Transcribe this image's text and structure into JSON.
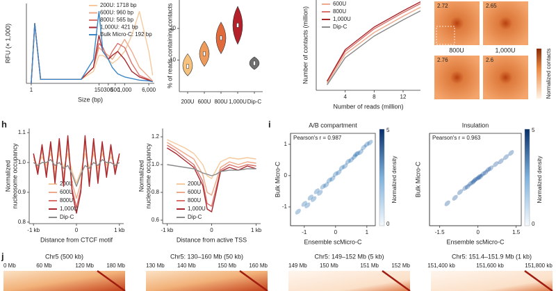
{
  "panel_labels": [
    "h",
    "i",
    "j"
  ],
  "chart_data": [
    {
      "type": "line",
      "xlabel": "Size (bp)",
      "ylabel": "RFU (× 1,000)",
      "xscale": "log",
      "xlim": [
        0.7,
        9000
      ],
      "ylim": [
        0,
        10
      ],
      "xticks": [
        1,
        150,
        300,
        500,
        {
          "value": 1000,
          "label": "1,000"
        },
        {
          "value": 6000,
          "label": "6,000"
        }
      ],
      "x": [
        1,
        1.3,
        2,
        40,
        100,
        150,
        200,
        300,
        400,
        600,
        1000,
        1700,
        3000,
        6000,
        8000
      ],
      "series": [
        {
          "name": "200U: 1718 bp",
          "color": "#f5c99b",
          "values": [
            0,
            7.5,
            0.5,
            0.5,
            1.5,
            3.5,
            3.5,
            3,
            2.5,
            3,
            4,
            6,
            9,
            4,
            1
          ]
        },
        {
          "name": "600U: 960 bp",
          "color": "#eea98a",
          "values": [
            0,
            7.5,
            0.5,
            0.5,
            2,
            4.5,
            4,
            3.5,
            3,
            4,
            5.5,
            4,
            2,
            0.8,
            0.3
          ]
        },
        {
          "name": "800U: 565 bp",
          "color": "#d9726b",
          "values": [
            0,
            7.5,
            0.5,
            0.5,
            2,
            5,
            4.5,
            3,
            4,
            5,
            4.5,
            2.5,
            1,
            0.5,
            0.2
          ]
        },
        {
          "name": "1,000U: 421 bp",
          "color": "#a8262c",
          "values": [
            0,
            7.5,
            0.5,
            0.5,
            2,
            6,
            4,
            3,
            3.5,
            4,
            3,
            1.5,
            0.8,
            0.4,
            0.2
          ]
        },
        {
          "name": "Bulk Micro-C: 192 bp",
          "color": "#3a87c8",
          "values": [
            0,
            7.5,
            0.5,
            0.5,
            3,
            9,
            4,
            3,
            2,
            1.2,
            0.8,
            0.6,
            0.4,
            0.3,
            0.2
          ]
        }
      ]
    },
    {
      "type": "violin",
      "ylabel": "% of reads containing contacts",
      "categories": [
        "200U",
        "600U",
        "800U",
        "1,000U",
        "Dip-C"
      ],
      "values": [
        8,
        12,
        17,
        21,
        9
      ],
      "low": [
        5,
        8,
        12,
        15,
        7
      ],
      "high": [
        12,
        16,
        22,
        27,
        11
      ],
      "colors": [
        "#f6c27d",
        "#ee9a5a",
        "#e06a3b",
        "#b3202a",
        "#707070"
      ],
      "ylim": [
        0,
        29
      ],
      "yticks": [
        10,
        20
      ]
    },
    {
      "type": "line",
      "xlabel": "Number of reads (million)",
      "ylabel": "Number of contacts (million)",
      "xlim": [
        0,
        14.4
      ],
      "ylim": [
        0,
        10
      ],
      "xticks": [
        4,
        8,
        12
      ],
      "x": [
        1.5,
        4,
        8,
        12,
        14.4
      ],
      "series": [
        {
          "name": "600U",
          "color": "#eea98a",
          "values": [
            0.8,
            4,
            6.4,
            8.2,
            9.2
          ]
        },
        {
          "name": "800U",
          "color": "#d9726b",
          "values": [
            1,
            4.3,
            6.8,
            8.6,
            9.6
          ]
        },
        {
          "name": "1,000U",
          "color": "#a8262c",
          "values": [
            1,
            4.5,
            7,
            8.8,
            9.8
          ]
        },
        {
          "name": "Dip-C",
          "color": "#8a8a8a",
          "values": [
            0.6,
            3.6,
            6,
            7.8,
            8.8
          ]
        }
      ]
    },
    {
      "type": "heatmap",
      "values": [
        2.72,
        2.65,
        2.76,
        2.6
      ],
      "captions": [
        "800U",
        "1,000U"
      ],
      "colorbar_label": "Normalized contacts"
    },
    {
      "type": "line",
      "xlabel": "Distance from CTCF motif",
      "ylabel": [
        "Normalized",
        "nucleosome occupancy"
      ],
      "xlim": [
        -1100,
        1100
      ],
      "ylim": [
        0.795,
        1.114
      ],
      "xticks": [
        {
          "value": -1000,
          "label": "-1 kb"
        },
        0,
        {
          "value": 1000,
          "label": "1 kb"
        }
      ],
      "yticks": [
        0.8,
        0.9,
        {
          "value": 1.0,
          "label": "1.0"
        },
        1.1
      ],
      "x": [
        -1000,
        -900,
        -800,
        -700,
        -600,
        -500,
        -400,
        -300,
        -200,
        -100,
        0,
        100,
        200,
        300,
        400,
        500,
        600,
        700,
        800,
        900,
        1000
      ],
      "series": [
        {
          "name": "200U",
          "color": "#f5c99b",
          "values": [
            1.01,
            0.99,
            1.02,
            0.99,
            1.03,
            0.98,
            1.03,
            0.98,
            1.03,
            0.97,
            0.93,
            0.97,
            1.03,
            0.98,
            1.03,
            0.98,
            1.03,
            0.99,
            1.02,
            0.99,
            1.01
          ]
        },
        {
          "name": "600U",
          "color": "#eea98a",
          "values": [
            1.02,
            0.98,
            1.04,
            0.97,
            1.05,
            0.96,
            1.05,
            0.95,
            1.06,
            0.93,
            0.88,
            0.93,
            1.06,
            0.95,
            1.05,
            0.96,
            1.05,
            0.97,
            1.04,
            0.98,
            1.02
          ]
        },
        {
          "name": "800U",
          "color": "#d9726b",
          "values": [
            1.03,
            0.97,
            1.05,
            0.96,
            1.06,
            0.94,
            1.07,
            0.93,
            1.08,
            0.91,
            0.85,
            0.91,
            1.08,
            0.93,
            1.07,
            0.94,
            1.06,
            0.96,
            1.05,
            0.97,
            1.03
          ]
        },
        {
          "name": "1,000U",
          "color": "#a8262c",
          "values": [
            1.03,
            0.96,
            1.06,
            0.95,
            1.07,
            0.93,
            1.08,
            0.92,
            1.09,
            0.9,
            0.83,
            0.9,
            1.09,
            0.92,
            1.08,
            0.93,
            1.07,
            0.95,
            1.06,
            0.96,
            1.03
          ]
        },
        {
          "name": "Dip-C",
          "color": "#8a8a8a",
          "values": [
            1.0,
            0.99,
            1.0,
            1.0,
            1.01,
            0.99,
            1.0,
            0.98,
            0.99,
            0.96,
            0.92,
            0.96,
            0.99,
            0.98,
            1.0,
            0.99,
            1.01,
            1.0,
            1.0,
            0.99,
            1.0
          ]
        }
      ]
    },
    {
      "type": "line",
      "xlabel": "Distance from active TSS",
      "ylabel": [
        "Normalized",
        "nucleosome occupancy"
      ],
      "xlim": [
        -1100,
        1100
      ],
      "ylim": [
        0.575,
        1.26
      ],
      "xticks": [
        {
          "value": -1000,
          "label": "-1 kb"
        },
        0,
        {
          "value": 1000,
          "label": "1 kb"
        }
      ],
      "yticks": [
        0.6,
        0.8,
        {
          "value": 1.0,
          "label": "1.0"
        },
        1.2
      ],
      "x": [
        -1000,
        -800,
        -600,
        -400,
        -200,
        -100,
        0,
        100,
        200,
        400,
        600,
        800,
        1000
      ],
      "series": [
        {
          "name": "200U",
          "color": "#f5c99b",
          "values": [
            1.18,
            1.15,
            1.12,
            1.08,
            1.0,
            0.92,
            0.9,
            0.96,
            1.02,
            1.05,
            1.04,
            1.05,
            1.04
          ]
        },
        {
          "name": "600U",
          "color": "#eea98a",
          "values": [
            1.16,
            1.12,
            1.08,
            1.04,
            0.93,
            0.8,
            0.78,
            0.88,
            0.98,
            1.02,
            1.0,
            1.02,
            1.01
          ]
        },
        {
          "name": "800U",
          "color": "#d9726b",
          "values": [
            1.14,
            1.1,
            1.05,
            1.0,
            0.88,
            0.72,
            0.7,
            0.83,
            0.96,
            1.0,
            0.98,
            1.0,
            0.99
          ]
        },
        {
          "name": "1,000U",
          "color": "#a8262c",
          "values": [
            1.12,
            1.08,
            1.03,
            0.98,
            0.85,
            0.68,
            0.66,
            0.8,
            0.95,
            0.98,
            0.96,
            0.99,
            0.97
          ]
        },
        {
          "name": "Dip-C",
          "color": "#8a8a8a",
          "values": [
            1.0,
            0.99,
            0.98,
            0.97,
            0.94,
            0.93,
            0.92,
            0.93,
            0.95,
            0.96,
            0.96,
            0.97,
            0.97
          ]
        }
      ]
    },
    {
      "type": "scatter",
      "title": "A/B compartment",
      "annotation": "Pearson's r = 0.987",
      "xlabel": "Ensemble scMicro-C",
      "ylabel": "Bulk Micro-C",
      "color": "#2c6fb0",
      "xlim": [
        -1.44,
        1.27
      ],
      "ylim": [
        -1.6,
        1.35
      ],
      "xticks": [
        -1,
        0,
        1
      ],
      "yticks": [
        -1,
        0,
        1
      ],
      "colorbar_label": "Normalized density",
      "colorbar_ticks": [
        0,
        5
      ],
      "x": [
        -1.2,
        -1.0,
        -0.9,
        -0.8,
        -0.7,
        -0.6,
        -0.5,
        -0.4,
        -0.3,
        -0.2,
        -0.1,
        0,
        0.1,
        0.2,
        0.3,
        0.4,
        0.5,
        0.6,
        0.7,
        0.8,
        0.9,
        1.0,
        1.1,
        0.65
      ],
      "values": [
        -1.15,
        -0.9,
        -0.95,
        -0.7,
        -0.75,
        -0.5,
        -0.55,
        -0.35,
        -0.3,
        -0.15,
        -0.1,
        0.05,
        0.1,
        0.25,
        0.3,
        0.45,
        0.5,
        0.6,
        0.7,
        0.75,
        0.9,
        1.0,
        1.05,
        0.68
      ]
    },
    {
      "type": "scatter",
      "title": "Insulation",
      "annotation": "Pearson's r = 0.963",
      "xlabel": "Ensemble scMicro-C",
      "ylabel": "Bulk Micro-C",
      "color": "#1f5a9e",
      "xlim": [
        -1.9,
        1.7
      ],
      "ylim": [
        -1.7,
        1.6
      ],
      "xticks": [
        -1.5,
        0,
        1.5
      ],
      "colorbar_label": "Normalized density",
      "colorbar_ticks": [
        0,
        5
      ],
      "x": [
        -1.2,
        -0.9,
        -0.7,
        -0.5,
        -0.4,
        -0.3,
        -0.2,
        -0.1,
        0,
        0.1,
        0.2,
        0.3,
        0.4,
        0.5,
        0.7,
        0.9,
        1.1,
        1.3,
        -0.15,
        0.05
      ],
      "values": [
        -0.9,
        -0.7,
        -0.5,
        -0.35,
        -0.3,
        -0.2,
        -0.15,
        -0.05,
        0,
        0.05,
        0.15,
        0.2,
        0.3,
        0.35,
        0.5,
        0.6,
        0.75,
        0.9,
        -0.1,
        0.05
      ]
    }
  ],
  "strips": [
    {
      "title": "Chr5 (500 kb)",
      "ticks": [
        "0 Mb",
        "60 Mb",
        "120 Mb",
        "180 Mb"
      ]
    },
    {
      "title": "Chr5: 130–160 Mb (50 kb)",
      "ticks": [
        "130 Mb",
        "140 Mb",
        "150 Mb",
        "160 Mb"
      ]
    },
    {
      "title": "Chr5: 149–152 Mb (5 kb)",
      "ticks": [
        "149 Mb",
        "150 Mb",
        "151 Mb",
        "152 Mb"
      ]
    },
    {
      "title": "Chr5: 151.4–151.9 Mb (1 kb)",
      "ticks": [
        "151,400 kb",
        "151,600 kb",
        "151,800 kb"
      ]
    }
  ]
}
